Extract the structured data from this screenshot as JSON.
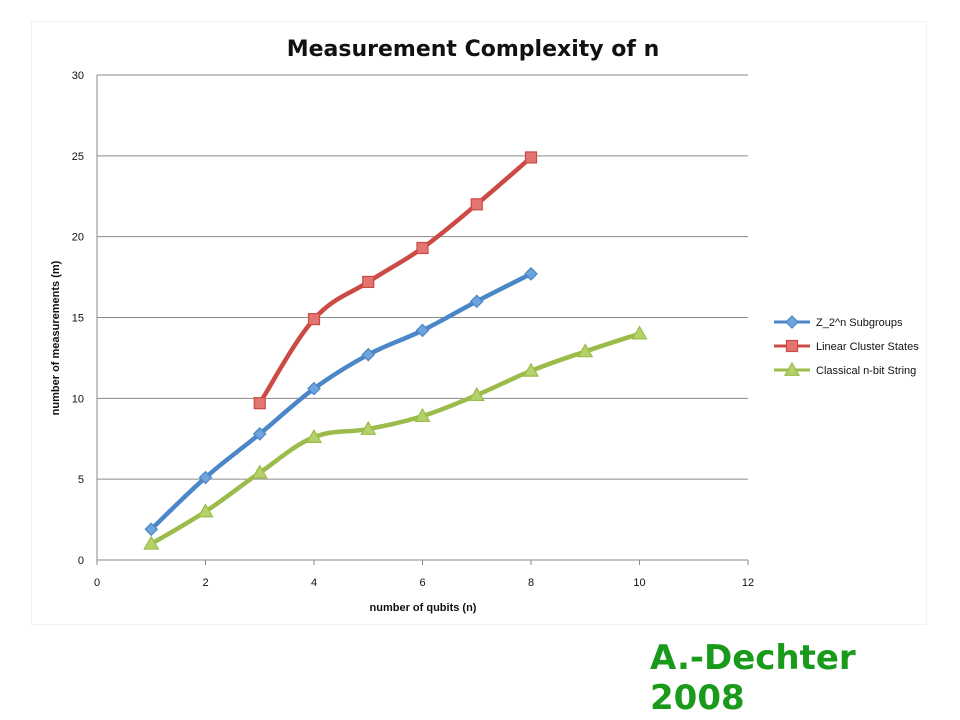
{
  "footer": {
    "credit": "A.-Dechter 2008"
  },
  "chart_data": {
    "type": "line",
    "title": "Measurement Complexity of n",
    "xlabel": "number of qubits (n)",
    "ylabel": "number of measurements (m)",
    "xlim": [
      0,
      12
    ],
    "ylim": [
      0,
      30
    ],
    "x_ticks": [
      0,
      2,
      4,
      6,
      8,
      10,
      12
    ],
    "y_ticks": [
      0,
      5,
      10,
      15,
      20,
      25,
      30
    ],
    "grid": "horizontal",
    "legend": "right",
    "series": [
      {
        "name": "Z_2^n Subgroups",
        "color": "#4a86c8",
        "marker_fill": "#6fa3dc",
        "marker": "diamond",
        "x": [
          1,
          2,
          3,
          4,
          5,
          6,
          7,
          8
        ],
        "y": [
          1.9,
          5.1,
          7.8,
          10.6,
          12.7,
          14.2,
          16.0,
          17.7
        ]
      },
      {
        "name": "Linear Cluster States",
        "color": "#cc4a44",
        "marker_fill": "#e27572",
        "marker": "square",
        "x": [
          3,
          4,
          5,
          6,
          7,
          8
        ],
        "y": [
          9.7,
          14.9,
          17.2,
          19.3,
          22.0,
          24.9
        ]
      },
      {
        "name": "Classical n-bit String",
        "color": "#9bbb4a",
        "marker_fill": "#b5d26a",
        "marker": "triangle",
        "x": [
          1,
          2,
          3,
          4,
          5,
          6,
          7,
          8,
          9,
          10
        ],
        "y": [
          1.0,
          3.0,
          5.4,
          7.6,
          8.1,
          8.9,
          10.2,
          11.7,
          12.9,
          14.0
        ]
      }
    ]
  }
}
